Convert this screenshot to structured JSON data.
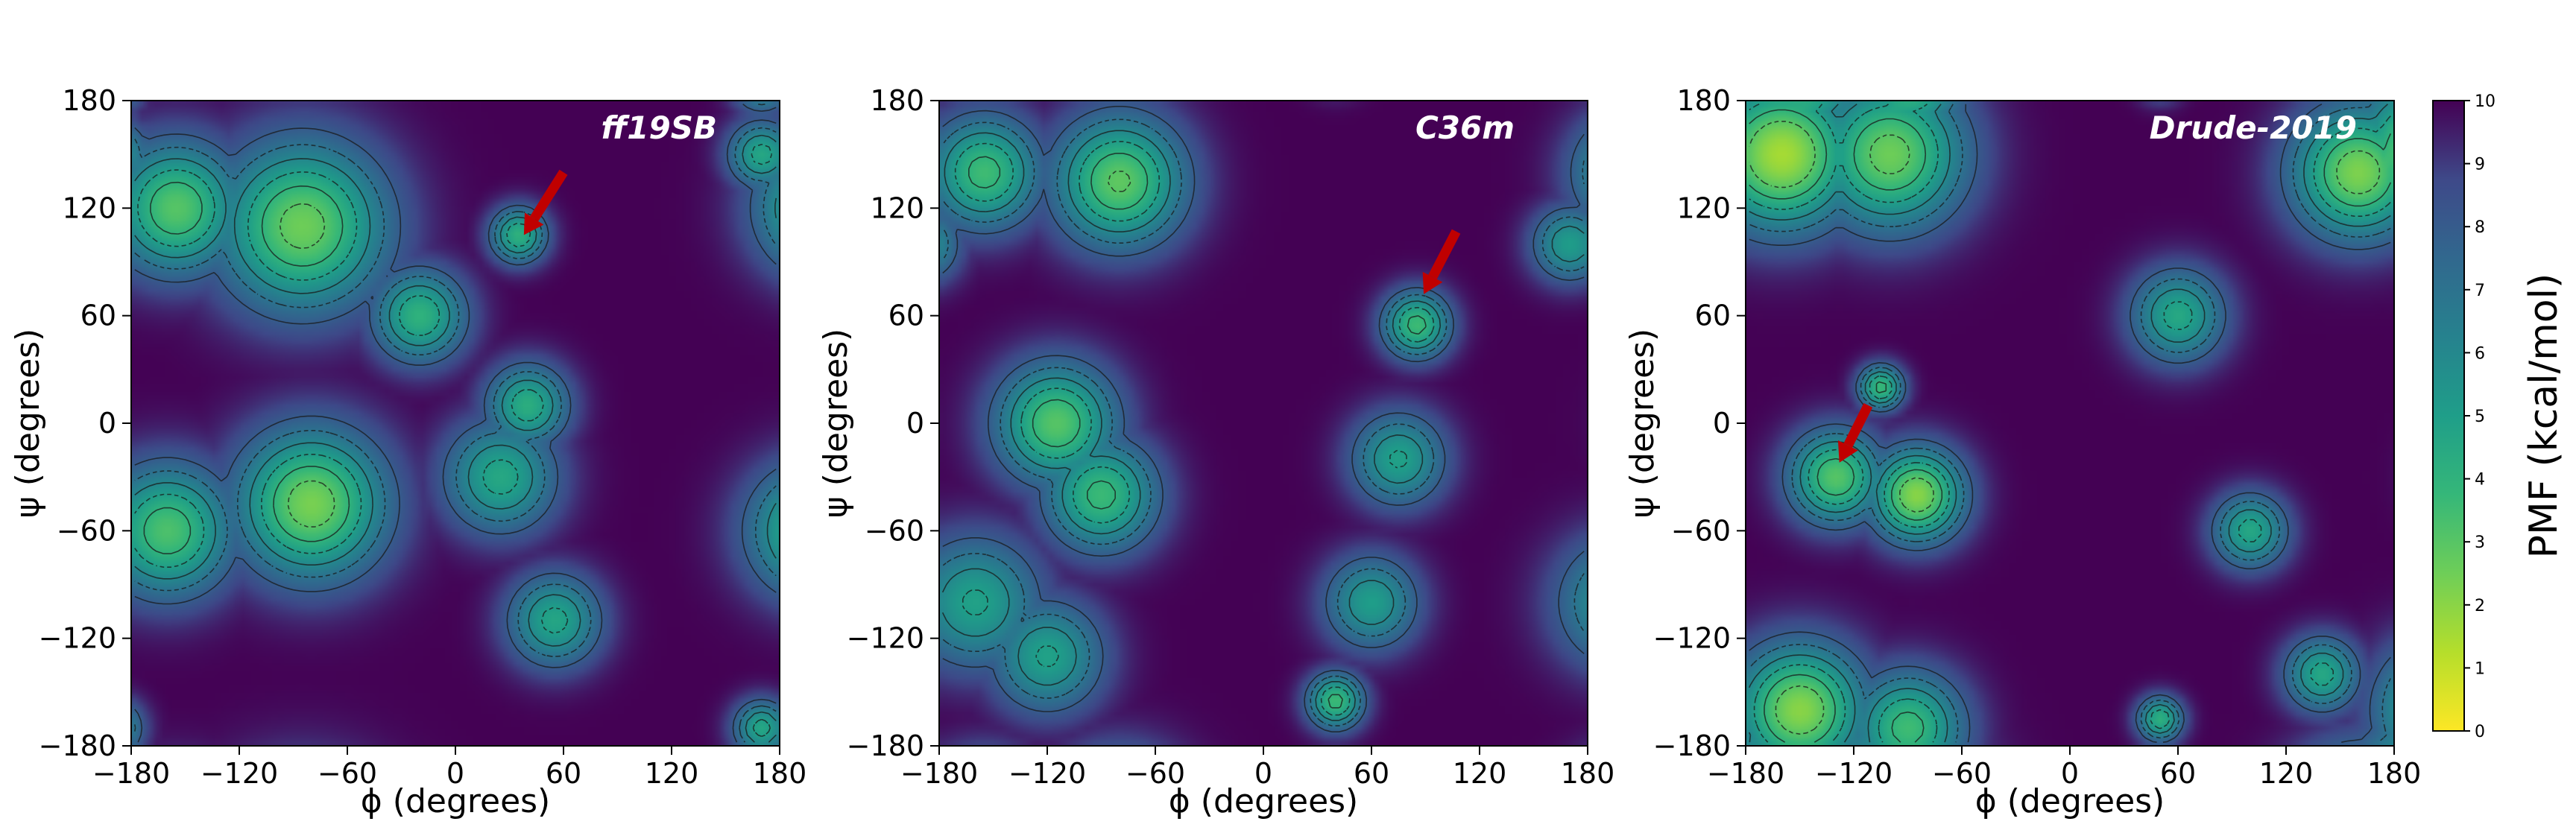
{
  "chart_data": [
    {
      "type": "heatmap",
      "title": "ff19SB",
      "xlabel": "ϕ (degrees)",
      "ylabel": "ψ (degrees)",
      "xlim": [
        -180,
        180
      ],
      "ylim": [
        -180,
        180
      ],
      "xticks": [
        "−180",
        "−120",
        "−60",
        "0",
        "60",
        "120",
        "180"
      ],
      "yticks": [
        "−180",
        "−120",
        "−60",
        "0",
        "60",
        "120",
        "180"
      ],
      "minima": [
        {
          "phi": -85,
          "psi": 110,
          "pmf": 2.5,
          "spread": 45
        },
        {
          "phi": -155,
          "psi": 120,
          "pmf": 3.0,
          "spread": 35
        },
        {
          "phi": -80,
          "psi": -45,
          "pmf": 2.3,
          "spread": 40
        },
        {
          "phi": -160,
          "psi": -60,
          "pmf": 3.2,
          "spread": 35
        },
        {
          "phi": -20,
          "psi": 60,
          "pmf": 4.0,
          "spread": 25
        },
        {
          "phi": 25,
          "psi": -30,
          "pmf": 4.5,
          "spread": 30
        },
        {
          "phi": 40,
          "psi": 10,
          "pmf": 4.2,
          "spread": 22
        },
        {
          "phi": 55,
          "psi": -110,
          "pmf": 4.6,
          "spread": 25
        },
        {
          "phi": 35,
          "psi": 105,
          "pmf": 4.0,
          "spread": 15
        },
        {
          "phi": 170,
          "psi": 150,
          "pmf": 4.5,
          "spread": 18
        },
        {
          "phi": 170,
          "psi": -170,
          "pmf": 4.5,
          "spread": 15
        }
      ],
      "arrow": {
        "phi_from": 60,
        "psi_from": 140,
        "phi_to": 38,
        "psi_to": 105
      }
    },
    {
      "type": "heatmap",
      "title": "C36m",
      "xlabel": "ϕ (degrees)",
      "ylabel": "ψ (degrees)",
      "xlim": [
        -180,
        180
      ],
      "ylim": [
        -180,
        180
      ],
      "xticks": [
        "−180",
        "−120",
        "−60",
        "0",
        "60",
        "120",
        "180"
      ],
      "yticks": [
        "−180",
        "−120",
        "−60",
        "0",
        "60",
        "120",
        "180"
      ],
      "minima": [
        {
          "phi": -80,
          "psi": 135,
          "pmf": 2.8,
          "spread": 35
        },
        {
          "phi": -155,
          "psi": 140,
          "pmf": 3.5,
          "spread": 30
        },
        {
          "phi": -115,
          "psi": 0,
          "pmf": 3.0,
          "spread": 32
        },
        {
          "phi": -90,
          "psi": -40,
          "pmf": 3.6,
          "spread": 30
        },
        {
          "phi": -160,
          "psi": -100,
          "pmf": 4.8,
          "spread": 35
        },
        {
          "phi": -120,
          "psi": -130,
          "pmf": 4.8,
          "spread": 30
        },
        {
          "phi": 85,
          "psi": 55,
          "pmf": 3.5,
          "spread": 18
        },
        {
          "phi": 75,
          "psi": -20,
          "pmf": 4.8,
          "spread": 25
        },
        {
          "phi": 60,
          "psi": -100,
          "pmf": 5.0,
          "spread": 25
        },
        {
          "phi": 40,
          "psi": -155,
          "pmf": 3.5,
          "spread": 15
        },
        {
          "phi": 170,
          "psi": 100,
          "pmf": 5.0,
          "spread": 20
        }
      ],
      "arrow": {
        "phi_from": 107,
        "psi_from": 107,
        "phi_to": 89,
        "psi_to": 72
      }
    },
    {
      "type": "heatmap",
      "title": "Drude-2019",
      "xlabel": "ϕ (degrees)",
      "ylabel": "ψ (degrees)",
      "xlim": [
        -180,
        180
      ],
      "ylim": [
        -180,
        180
      ],
      "xticks": [
        "−180",
        "−120",
        "−60",
        "0",
        "60",
        "120",
        "180"
      ],
      "yticks": [
        "−180",
        "−120",
        "−60",
        "0",
        "60",
        "120",
        "180"
      ],
      "minima": [
        {
          "phi": -160,
          "psi": 150,
          "pmf": 1.5,
          "spread": 40
        },
        {
          "phi": -100,
          "psi": 150,
          "pmf": 2.5,
          "spread": 40
        },
        {
          "phi": 160,
          "psi": 140,
          "pmf": 2.2,
          "spread": 35
        },
        {
          "phi": -85,
          "psi": -40,
          "pmf": 2.0,
          "spread": 25
        },
        {
          "phi": -130,
          "psi": -30,
          "pmf": 3.0,
          "spread": 25
        },
        {
          "phi": -150,
          "psi": -160,
          "pmf": 2.0,
          "spread": 35
        },
        {
          "phi": -90,
          "psi": -170,
          "pmf": 3.5,
          "spread": 30
        },
        {
          "phi": 60,
          "psi": 60,
          "pmf": 4.5,
          "spread": 25
        },
        {
          "phi": 100,
          "psi": -60,
          "pmf": 4.5,
          "spread": 20
        },
        {
          "phi": 140,
          "psi": -140,
          "pmf": 4.5,
          "spread": 20
        },
        {
          "phi": 50,
          "psi": -165,
          "pmf": 4.0,
          "spread": 12
        },
        {
          "phi": -105,
          "psi": 20,
          "pmf": 3.5,
          "spread": 12
        }
      ],
      "arrow": {
        "phi_from": -112,
        "psi_from": 10,
        "phi_to": -128,
        "psi_to": -22
      }
    }
  ],
  "colorbar": {
    "label": "PMF (kcal/mol)",
    "min": 0,
    "max": 10,
    "ticks": [
      "0",
      "1",
      "2",
      "3",
      "4",
      "5",
      "6",
      "7",
      "8",
      "9",
      "10"
    ],
    "colormap": "viridis_r"
  },
  "colors": {
    "arrow": "#c00000",
    "contour": "#1a1a1a",
    "background": "#ffffff"
  }
}
